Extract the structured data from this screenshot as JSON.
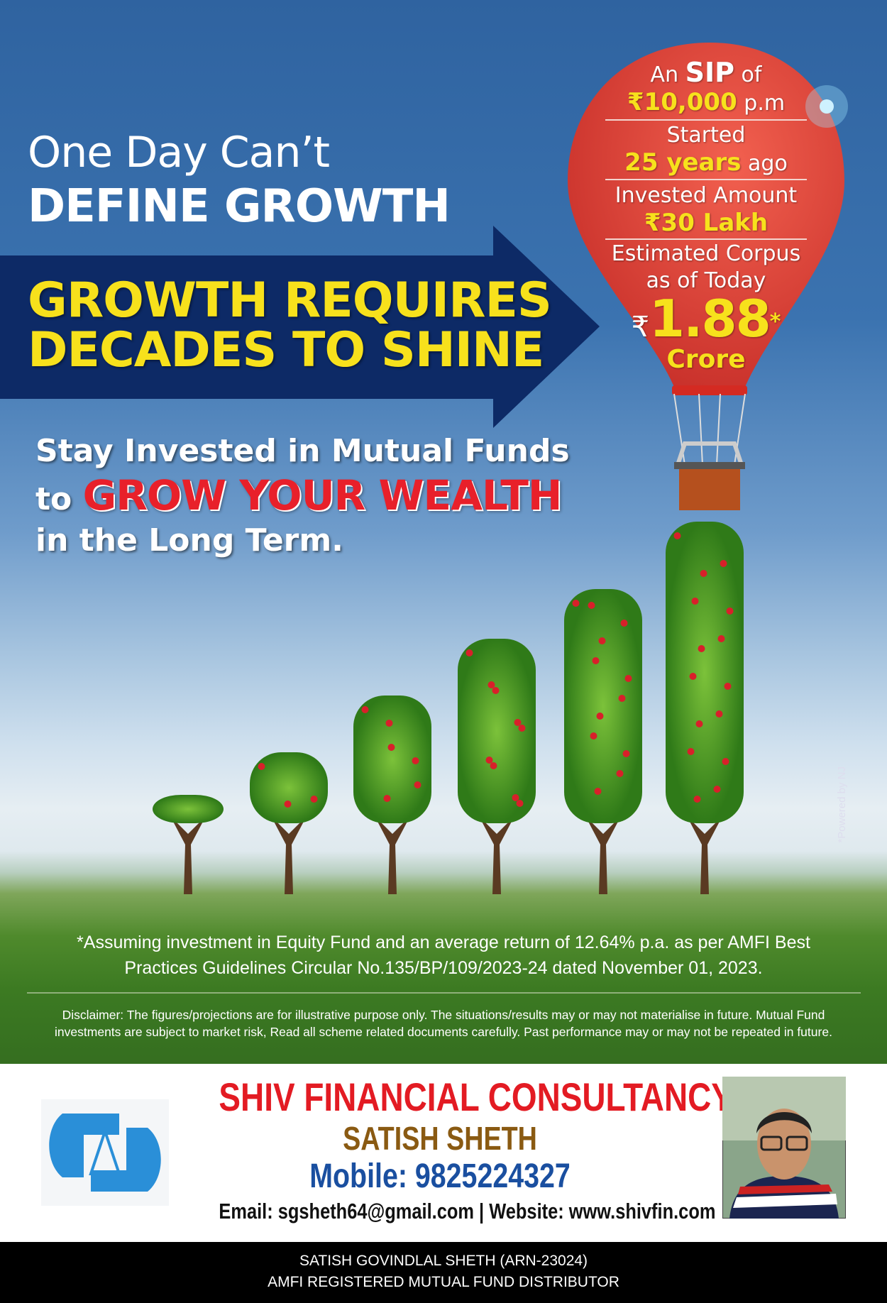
{
  "headline": {
    "line1": "One Day Can’t",
    "line2": "DEFINE GROWTH"
  },
  "banner": {
    "line1": "GROWTH REQUIRES",
    "line2": "DECADES TO SHINE"
  },
  "subtext": {
    "line1": "Stay Invested in Mutual Funds",
    "line2_prefix": "to ",
    "line2_highlight": "GROW YOUR WEALTH",
    "line3": "in the Long Term."
  },
  "balloon": {
    "sip_prefix": "An ",
    "sip_bold": "SIP",
    "sip_suffix": " of",
    "amount": "₹10,000",
    "amount_suffix": " p.m",
    "started": "Started",
    "years": "25 years",
    "years_suffix": " ago",
    "invested_label": "Invested Amount",
    "invested_value": "₹30 Lakh",
    "corpus_label1": "Estimated Corpus",
    "corpus_label2": "as of Today",
    "corpus_symbol": "₹",
    "corpus_value": "1.88",
    "corpus_star": "*",
    "corpus_unit": "Crore"
  },
  "powered_by": "*Powered by NJ",
  "footnote": {
    "line1": "*Assuming investment in Equity Fund and an average return of 12.64% p.a. as per AMFI Best",
    "line2": "Practices Guidelines Circular No.135/BP/109/2023-24 dated November 01, 2023."
  },
  "disclaimer": {
    "line1": "Disclaimer: The figures/projections are for illustrative purpose only. The situations/results may or may not materialise in future. Mutual Fund",
    "line2": "investments are subject to market risk,  Read all scheme related documents carefully. Past performance may or may not be repeated in future."
  },
  "contact": {
    "company": "SHIV FINANCIAL CONSULTANCY",
    "name": "SATISH SHETH",
    "mobile": "Mobile: 9825224327",
    "email_web": "Email: sgsheth64@gmail.com | Website: www.shivfin.com"
  },
  "footer": {
    "line1": "SATISH GOVINDLAL SHETH (ARN-23024)",
    "line2": "AMFI REGISTERED MUTUAL FUND DISTRIBUTOR"
  },
  "colors": {
    "navy": "#0d2a66",
    "yellow": "#f7e11c",
    "red": "#e8202a",
    "balloon": "#e4453a",
    "brown": "#8a5a12",
    "blue": "#1a4fa0"
  }
}
